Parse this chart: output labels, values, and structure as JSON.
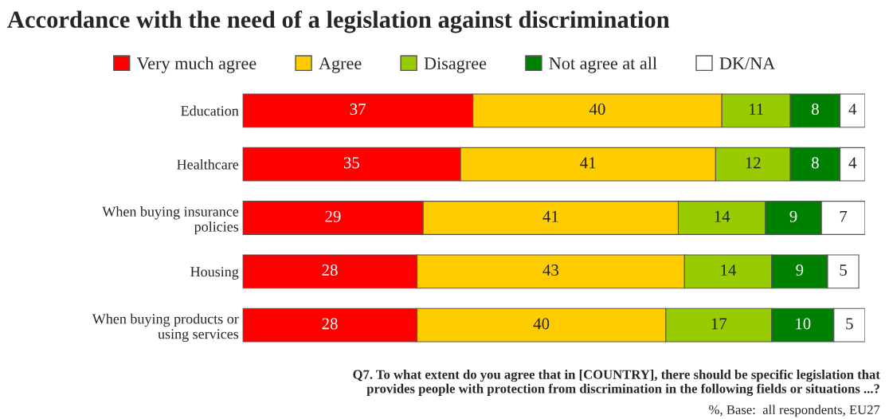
{
  "chart_data": {
    "type": "bar",
    "orientation": "horizontal",
    "stacked": true,
    "data_labels": true,
    "legend": "top",
    "grid": false,
    "title": "Accordance with the need of a legislation against discrimination",
    "categories": [
      "Education",
      "Healthcare",
      "When buying insurance\npolicies",
      "Housing",
      "When buying products or\nusing services"
    ],
    "series": [
      {
        "name": "Very much agree",
        "color": "#ff0000",
        "values": [
          37,
          35,
          29,
          28,
          28
        ]
      },
      {
        "name": "Agree",
        "color": "#ffcc00",
        "values": [
          40,
          41,
          41,
          43,
          40
        ]
      },
      {
        "name": "Disagree",
        "color": "#99cc00",
        "values": [
          11,
          12,
          14,
          14,
          17
        ]
      },
      {
        "name": "Not agree at all",
        "color": "#008000",
        "values": [
          8,
          8,
          9,
          9,
          10
        ]
      },
      {
        "name": "DK/NA",
        "color": "#ffffff",
        "values": [
          4,
          4,
          7,
          5,
          5
        ]
      }
    ],
    "annotations": [
      "Q7. To what extent do you agree that in [COUNTRY], there should be specific legislation that\nprovides people with protection from discrimination in the following fields or situations ...?",
      "%, Base:  all respondents, EU27"
    ]
  }
}
